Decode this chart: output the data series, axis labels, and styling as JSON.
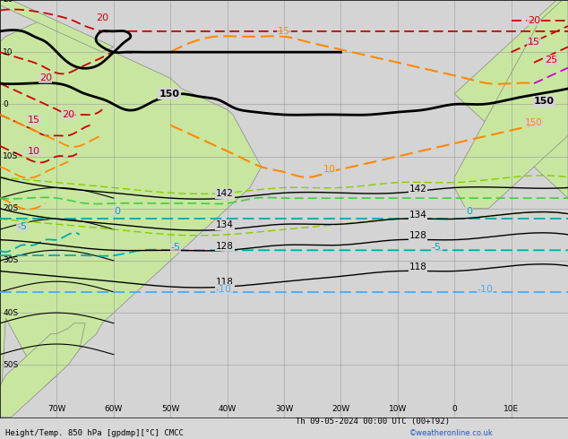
{
  "title_left": "Height/Temp. 850 hPa [gpdmp][°C] CMCC",
  "title_right": "Th 09-05-2024 00:00 UTC (00+T92)",
  "copyright": "©weatheronline.co.uk",
  "ocean_color": "#d8d8d8",
  "land_color": "#c8e6a0",
  "grid_color": "#999999",
  "figsize": [
    6.34,
    4.9
  ],
  "dpi": 100,
  "lon_min": -80,
  "lon_max": 20,
  "lat_min": -60,
  "lat_max": 20
}
